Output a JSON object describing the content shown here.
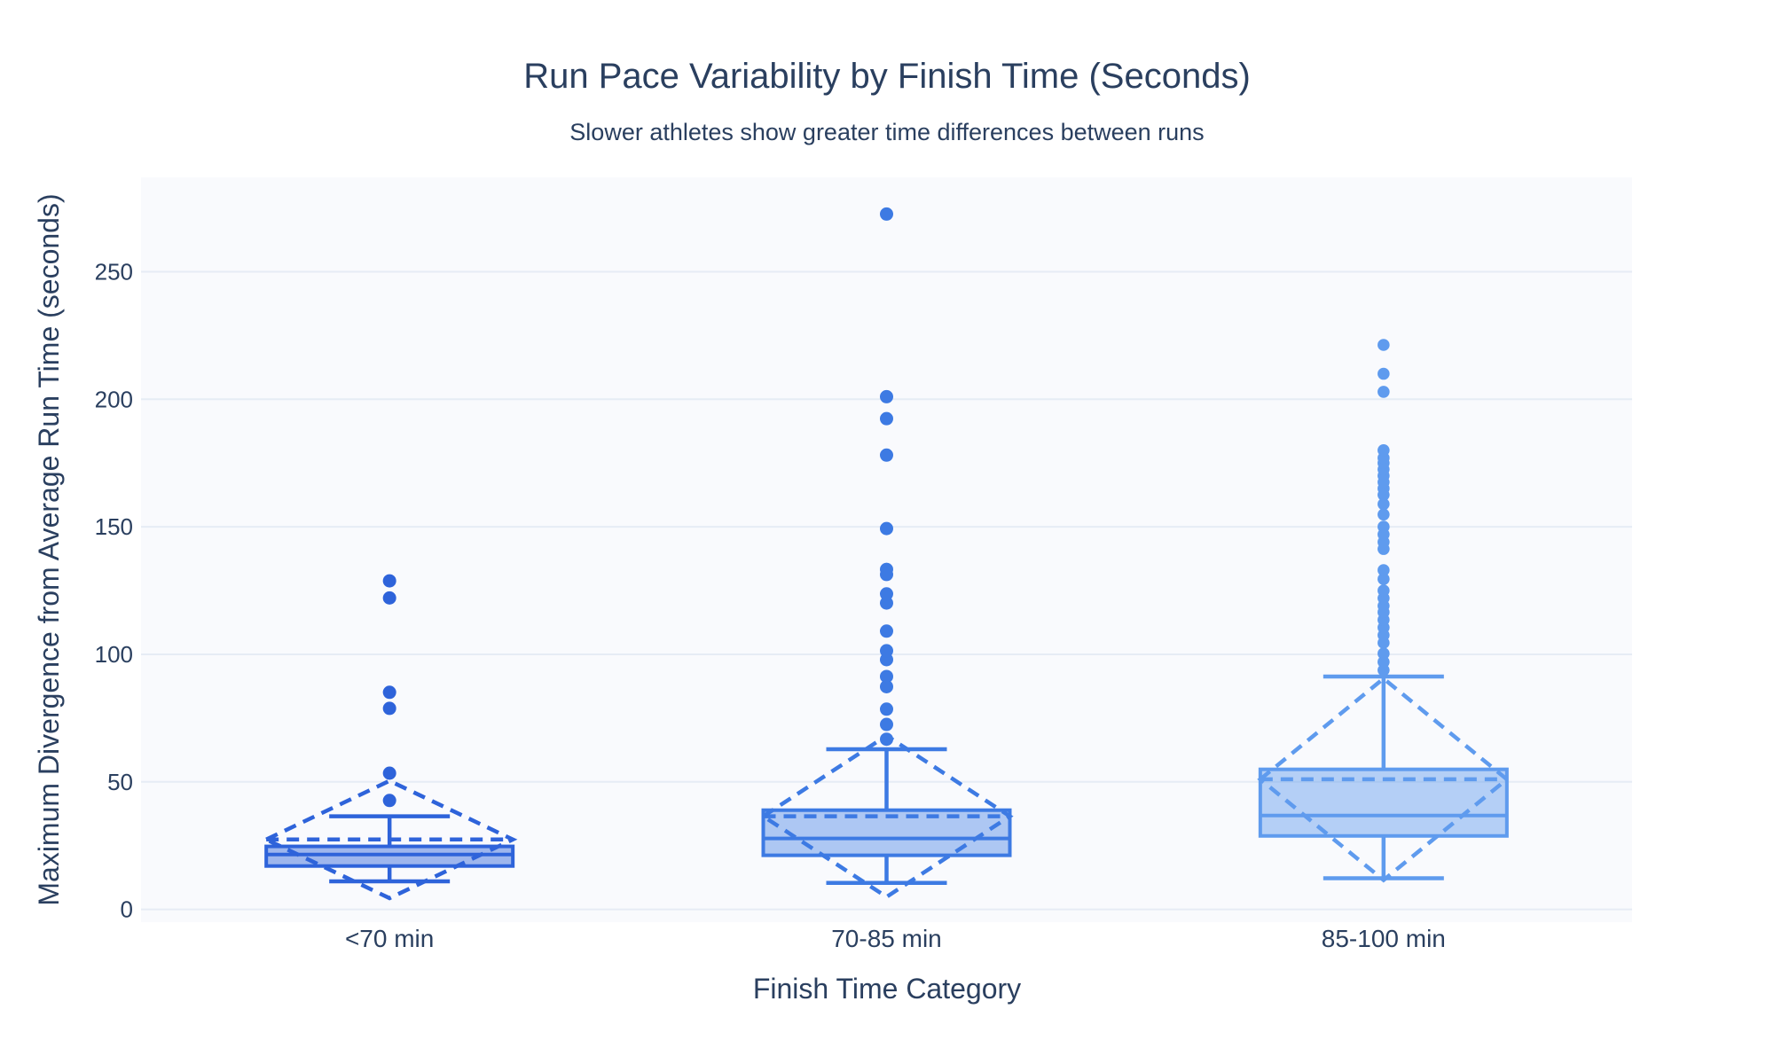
{
  "chart_data": {
    "type": "box",
    "title": "Run Pace Variability by Finish Time (Seconds)",
    "subtitle": "Slower athletes show greater time differences between runs",
    "xlabel": "Finish Time Category",
    "ylabel": "Maximum Divergence from Average Run Time (seconds)",
    "ylim": [
      -5,
      287
    ],
    "yticks": [
      0,
      50,
      100,
      150,
      200,
      250
    ],
    "grid": true,
    "legend": "none",
    "boxmean": "sd",
    "categories": [
      "<70 min",
      "70-85 min",
      "85-100 min"
    ],
    "series": [
      {
        "name": "<70 min",
        "q1": 17.0,
        "median": 21.5,
        "q3": 24.7,
        "whisker_low": 11.0,
        "whisker_high": 36.5,
        "mean": 27.4,
        "sd": 23.0,
        "outliers": [
          42.7,
          53.4,
          78.8,
          85.1,
          122.1,
          128.8
        ],
        "line_color": "#2e63da",
        "fill_color": "rgba(46,99,218,0.45)",
        "marker_size": 7.5
      },
      {
        "name": "70-85 min",
        "q1": 21.2,
        "median": 27.8,
        "q3": 38.9,
        "whisker_low": 10.4,
        "whisker_high": 62.8,
        "mean": 36.5,
        "sd": 31.6,
        "outliers": [
          66.7,
          72.5,
          78.5,
          87.3,
          91.3,
          97.9,
          101.4,
          109.1,
          120.1,
          123.7,
          131.3,
          133.3,
          149.3,
          178.1,
          192.4,
          201.0,
          272.6
        ],
        "line_color": "#3d7ae3",
        "fill_color": "rgba(61,122,227,0.40)",
        "marker_size": 7.5
      },
      {
        "name": "85-100 min",
        "q1": 28.8,
        "median": 36.8,
        "q3": 54.9,
        "whisker_low": 12.2,
        "whisker_high": 91.3,
        "mean": 51.0,
        "sd": 39.5,
        "outliers": [
          93.8,
          97.0,
          100.3,
          104.5,
          107.5,
          110.5,
          113.5,
          116.5,
          119.0,
          122.0,
          125.0,
          129.5,
          133.0,
          141.3,
          144.0,
          147.0,
          150.0,
          154.8,
          158.9,
          162.5,
          165.0,
          167.5,
          170.0,
          172.5,
          175.0,
          177.0,
          180.0,
          202.9,
          210.0,
          221.3
        ],
        "line_color": "#5f9bee",
        "fill_color": "rgba(95,155,238,0.45)",
        "marker_size": 6.8
      }
    ],
    "colors": {
      "text": "#2a3f5f",
      "plot_bg": "#f9fafd",
      "grid": "#e6ecf5",
      "paper_bg": "#ffffff"
    }
  }
}
